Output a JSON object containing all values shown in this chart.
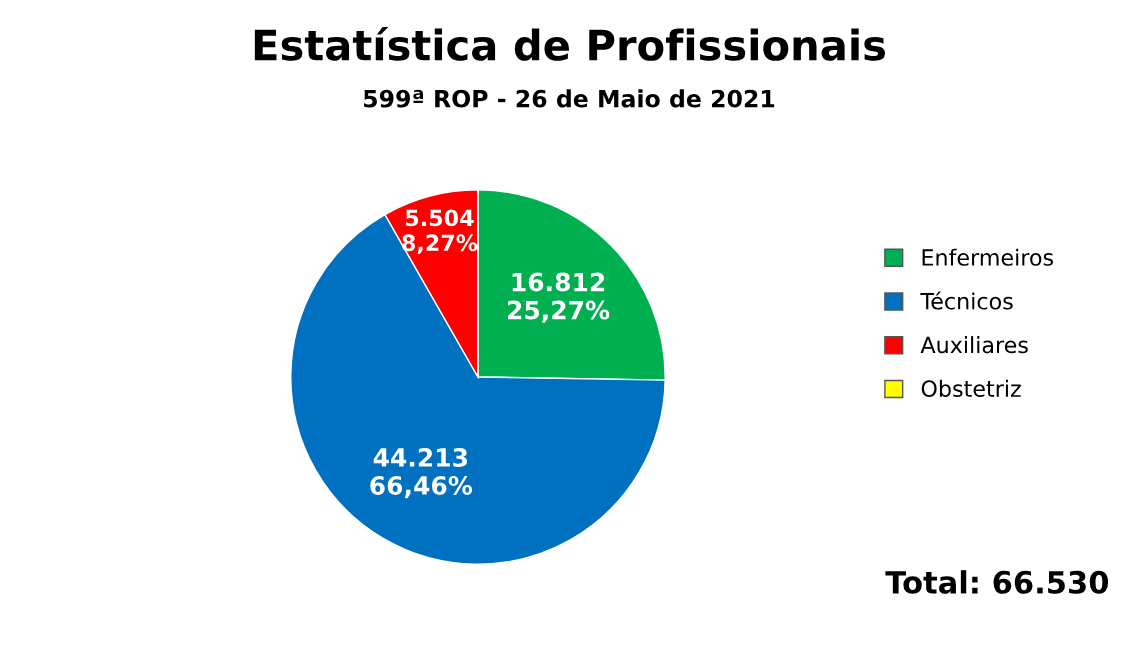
{
  "chart_data": {
    "type": "pie",
    "title": "Estatística de Profissionais",
    "subtitle": "599ª ROP - 26 de Maio de 2021",
    "categories": [
      "Enfermeiros",
      "Técnicos",
      "Auxiliares",
      "Obstetriz"
    ],
    "values": [
      16812,
      44213,
      5504,
      1
    ],
    "colors": [
      "#00b050",
      "#0070c0",
      "#ff0000",
      "#ffff00"
    ],
    "value_labels": [
      "16.812\n25,27%",
      "44.213\n66,46%",
      "5.504\n8,27%",
      null
    ],
    "legend": "right",
    "annotations": [
      "Total: 66.530"
    ]
  }
}
